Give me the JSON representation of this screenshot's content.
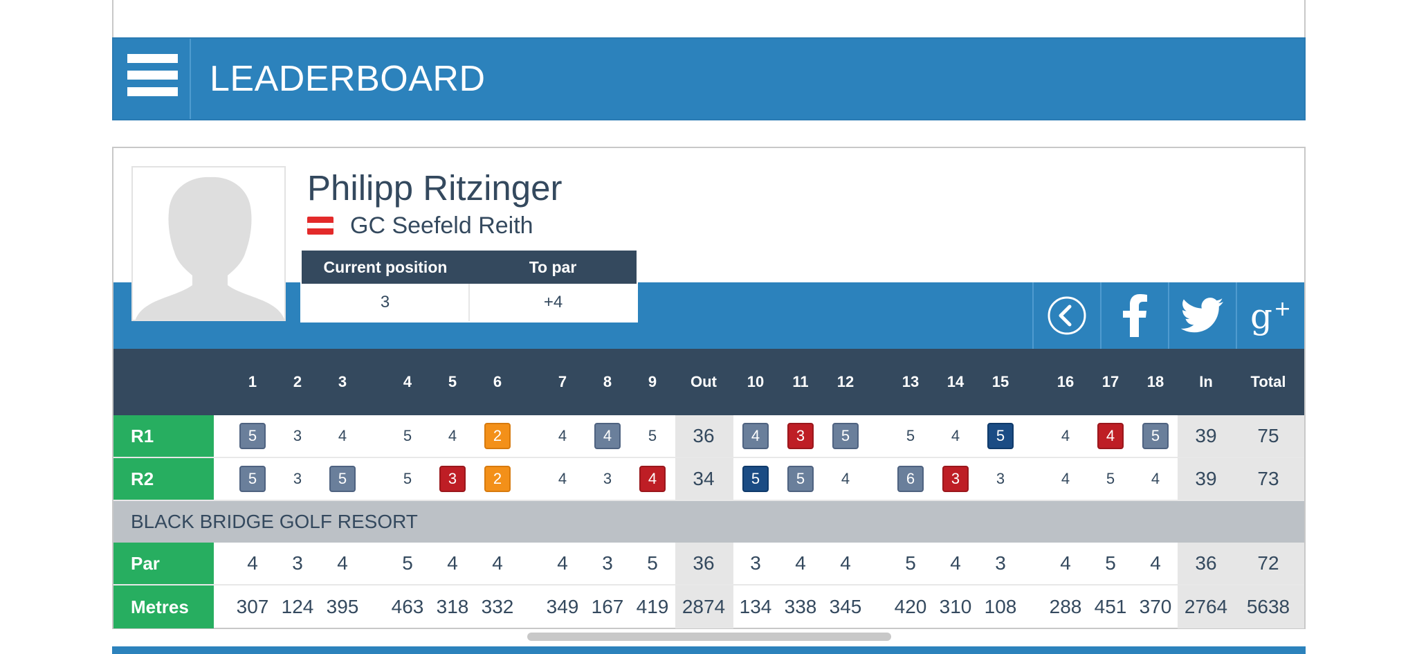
{
  "header": {
    "title": "LEADERBOARD"
  },
  "player": {
    "name": "Philipp Ritzinger",
    "club": "GC Seefeld Reith",
    "position_label": "Current position",
    "to_par_label": "To par",
    "position": "3",
    "to_par": "+4"
  },
  "colors": {
    "accent_blue": "#2c82bc",
    "header_dark": "#34495e",
    "label_green": "#27ae60",
    "eagle": "#f39019",
    "birdie": "#be1e25",
    "bogey": "#6a7f9b",
    "double_bogey": "#1b4c84"
  },
  "social": [
    "back-icon",
    "facebook-icon",
    "twitter-icon",
    "google-plus-icon"
  ],
  "scorecard": {
    "columns": [
      "1",
      "2",
      "3",
      "4",
      "5",
      "6",
      "7",
      "8",
      "9",
      "Out",
      "10",
      "11",
      "12",
      "13",
      "14",
      "15",
      "16",
      "17",
      "18",
      "In",
      "Total"
    ],
    "rounds": [
      {
        "label": "R1",
        "scores": [
          "5",
          "3",
          "4",
          "5",
          "4",
          "2",
          "4",
          "4",
          "5",
          "36",
          "4",
          "3",
          "5",
          "5",
          "4",
          "5",
          "4",
          "4",
          "5",
          "39",
          "75"
        ]
      },
      {
        "label": "R2",
        "scores": [
          "5",
          "3",
          "5",
          "5",
          "3",
          "2",
          "4",
          "3",
          "4",
          "34",
          "5",
          "5",
          "4",
          "6",
          "3",
          "3",
          "4",
          "5",
          "4",
          "39",
          "73"
        ]
      }
    ],
    "course": "BLACK BRIDGE GOLF RESORT",
    "par": {
      "label": "Par",
      "values": [
        "4",
        "3",
        "4",
        "5",
        "4",
        "4",
        "4",
        "3",
        "5",
        "36",
        "3",
        "4",
        "4",
        "5",
        "4",
        "3",
        "4",
        "5",
        "4",
        "36",
        "72"
      ]
    },
    "metres": {
      "label": "Metres",
      "values": [
        "307",
        "124",
        "395",
        "463",
        "318",
        "332",
        "349",
        "167",
        "419",
        "2874",
        "134",
        "338",
        "345",
        "420",
        "310",
        "108",
        "288",
        "451",
        "370",
        "2764",
        "5638"
      ]
    }
  }
}
